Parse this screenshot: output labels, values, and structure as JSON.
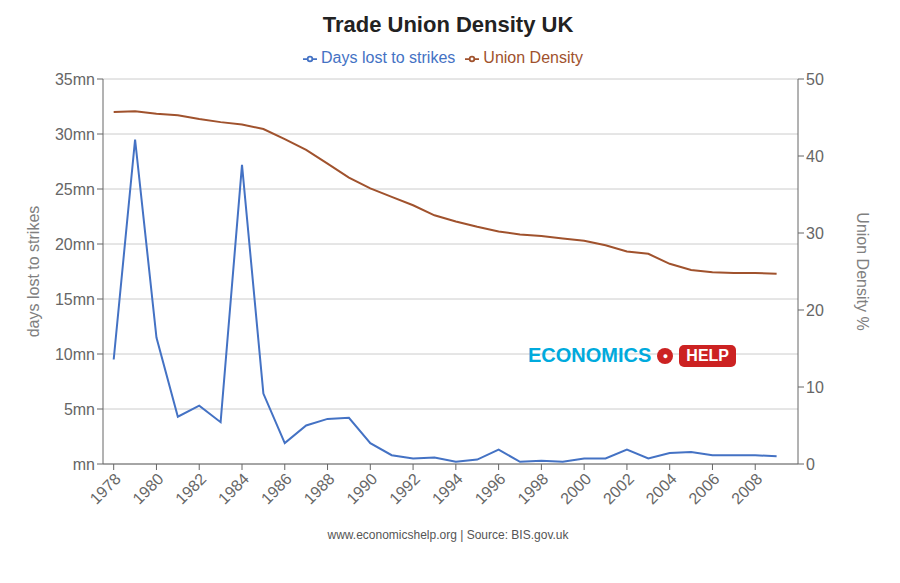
{
  "chart_data": {
    "type": "line",
    "title": "Trade Union Density UK",
    "y_label": "days lost to strikes",
    "y2_label": "Union Density %",
    "x": [
      1978,
      1979,
      1980,
      1981,
      1982,
      1983,
      1984,
      1985,
      1986,
      1987,
      1988,
      1989,
      1990,
      1991,
      1992,
      1993,
      1994,
      1995,
      1996,
      1997,
      1998,
      1999,
      2000,
      2001,
      2002,
      2003,
      2004,
      2005,
      2006,
      2007,
      2008,
      2009
    ],
    "series": [
      {
        "name": "Days lost to strikes",
        "color": "#4472c4",
        "values": [
          9.5,
          29.5,
          11.5,
          4.3,
          5.3,
          3.8,
          27.2,
          6.4,
          1.9,
          3.5,
          4.1,
          4.2,
          1.9,
          0.8,
          0.5,
          0.6,
          0.2,
          0.4,
          1.3,
          0.2,
          0.3,
          0.2,
          0.5,
          0.5,
          1.3,
          0.5,
          1.0,
          1.1,
          0.8,
          0.8,
          0.8,
          0.7
        ]
      },
      {
        "name": "Union Density",
        "color": "#a0522d",
        "axis": "y2",
        "values": [
          45.7,
          45.8,
          45.5,
          45.3,
          44.8,
          44.4,
          44.1,
          43.5,
          42.2,
          40.8,
          39.0,
          37.2,
          35.8,
          34.7,
          33.6,
          32.3,
          31.5,
          30.8,
          30.2,
          29.8,
          29.6,
          29.3,
          29.0,
          28.4,
          27.6,
          27.3,
          26.0,
          25.2,
          24.9,
          24.8,
          24.8,
          24.7
        ]
      }
    ],
    "xlim": [
      1977.5,
      2010
    ],
    "xticks": [
      1978,
      1980,
      1982,
      1984,
      1986,
      1988,
      1990,
      1992,
      1994,
      1996,
      1998,
      2000,
      2002,
      2004,
      2006,
      2008
    ],
    "ylim": [
      0,
      35
    ],
    "yticks": [
      {
        "value": 0,
        "label": "mn"
      },
      {
        "value": 5,
        "label": "5mn"
      },
      {
        "value": 10,
        "label": "10mn"
      },
      {
        "value": 15,
        "label": "15mn"
      },
      {
        "value": 20,
        "label": "20mn"
      },
      {
        "value": 25,
        "label": "25mn"
      },
      {
        "value": 30,
        "label": "30mn"
      },
      {
        "value": 35,
        "label": "35mn"
      }
    ],
    "y2lim": [
      0,
      50
    ],
    "y2ticks": [
      0,
      10,
      20,
      30,
      40,
      50
    ],
    "grid": true,
    "legend": "top",
    "annotations": [
      "ECONOMICS",
      "●",
      "HELP",
      "www.economicshelp.org | Source: BIS.gov.uk"
    ]
  }
}
